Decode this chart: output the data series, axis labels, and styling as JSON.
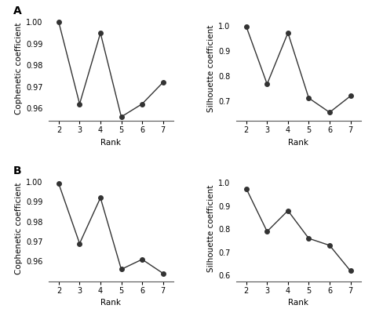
{
  "panel_A_cophenetic": {
    "x": [
      2,
      3,
      4,
      5,
      6,
      7
    ],
    "y": [
      1.0,
      0.962,
      0.995,
      0.956,
      0.962,
      0.972
    ],
    "ylabel": "Cophenetic coefficient",
    "xlabel": "Rank",
    "ylim": [
      0.954,
      1.003
    ],
    "yticks": [
      0.96,
      0.97,
      0.98,
      0.99,
      1.0
    ]
  },
  "panel_A_silhouette": {
    "x": [
      2,
      3,
      4,
      5,
      6,
      7
    ],
    "y": [
      0.997,
      0.768,
      0.972,
      0.712,
      0.655,
      0.72
    ],
    "ylabel": "Silhouette coefficient",
    "xlabel": "Rank",
    "ylim": [
      0.62,
      1.04
    ],
    "yticks": [
      0.7,
      0.8,
      0.9,
      1.0
    ]
  },
  "panel_B_cophenetic": {
    "x": [
      2,
      3,
      4,
      5,
      6,
      7
    ],
    "y": [
      0.999,
      0.969,
      0.992,
      0.956,
      0.961,
      0.954
    ],
    "ylabel": "Cophenetic coefficient",
    "xlabel": "Rank",
    "ylim": [
      0.95,
      1.003
    ],
    "yticks": [
      0.96,
      0.97,
      0.98,
      0.99,
      1.0
    ]
  },
  "panel_B_silhouette": {
    "x": [
      2,
      3,
      4,
      5,
      6,
      7
    ],
    "y": [
      0.975,
      0.79,
      0.88,
      0.76,
      0.73,
      0.62
    ],
    "ylabel": "Silhouette coefficient",
    "xlabel": "Rank",
    "ylim": [
      0.575,
      1.03
    ],
    "yticks": [
      0.6,
      0.7,
      0.8,
      0.9,
      1.0
    ]
  },
  "label_A": "A",
  "label_B": "B",
  "line_color": "#333333",
  "marker": "o",
  "markersize": 4,
  "linewidth": 1.0,
  "tick_fontsize": 7,
  "label_fontsize": 7.5,
  "panel_label_fontsize": 10,
  "background_color": "#ffffff"
}
